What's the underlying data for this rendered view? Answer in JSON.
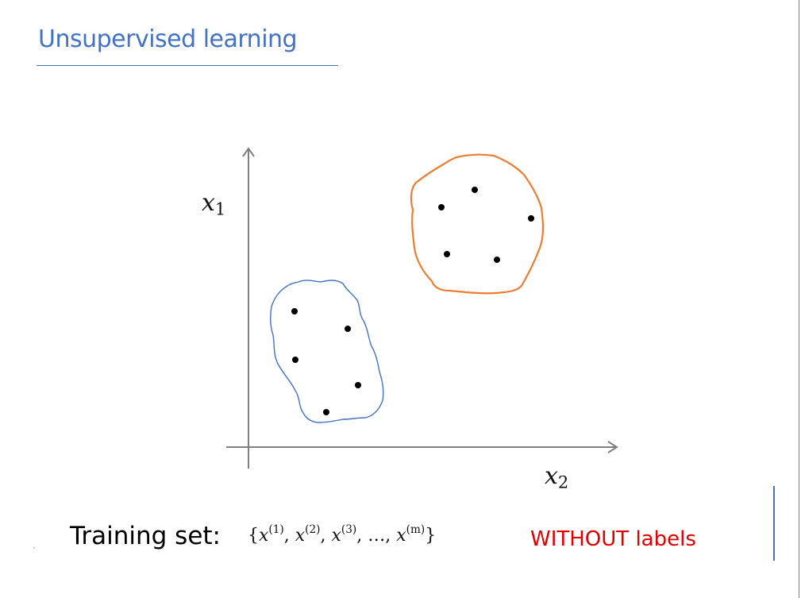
{
  "slide": {
    "title": "Unsupervised learning"
  },
  "diagram": {
    "x1_label_var": "x",
    "x1_label_sub": "1",
    "x2_label_var": "x",
    "x2_label_sub": "2",
    "cluster_colors": {
      "blue": "#4472c4",
      "orange": "#ed7d31"
    },
    "point_color": "#000000",
    "axis_color": "#808080"
  },
  "footer": {
    "training_label": "Training set:",
    "set_open": "{",
    "set_close": "}",
    "var": "x",
    "sup1": "(1)",
    "sup2": "(2)",
    "sup3": "(3)",
    "sup_m": "(m)",
    "comma": ", ",
    "ellipsis": "…",
    "without_labels": "WITHOUT labels"
  }
}
